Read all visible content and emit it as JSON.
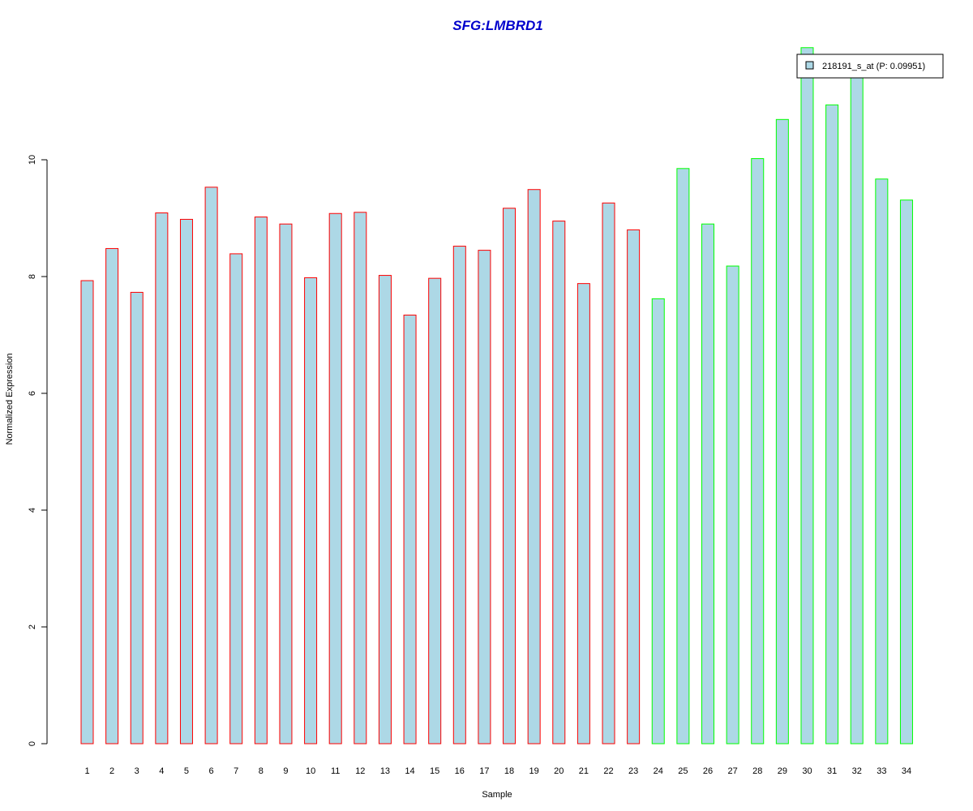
{
  "chart_data": {
    "type": "bar",
    "title": "SFG:LMBRD1",
    "xlabel": "Sample",
    "ylabel": "Normalized Expression",
    "ylim": [
      0,
      12
    ],
    "y_ticks": [
      "0",
      "2",
      "4",
      "6",
      "8",
      "10"
    ],
    "categories": [
      "1",
      "2",
      "3",
      "4",
      "5",
      "6",
      "7",
      "8",
      "9",
      "10",
      "11",
      "12",
      "13",
      "14",
      "15",
      "16",
      "17",
      "18",
      "19",
      "20",
      "21",
      "22",
      "23",
      "24",
      "25",
      "26",
      "27",
      "28",
      "29",
      "30",
      "31",
      "32",
      "33",
      "34"
    ],
    "series": [
      {
        "name": "218191_s_at (P: 0.09951)",
        "values": [
          7.93,
          8.48,
          7.73,
          9.09,
          8.98,
          9.53,
          8.39,
          9.02,
          8.9,
          7.98,
          9.08,
          9.1,
          8.02,
          7.34,
          7.97,
          8.52,
          8.45,
          9.17,
          9.49,
          8.95,
          7.88,
          9.26,
          8.8,
          7.62,
          9.85,
          8.9,
          8.18,
          10.02,
          10.69,
          11.92,
          10.94,
          11.53,
          9.67,
          9.31
        ]
      }
    ],
    "groups": [
      {
        "from": 1,
        "to": 23,
        "border_color": "#ff0000"
      },
      {
        "from": 24,
        "to": 34,
        "border_color": "#00ff00"
      }
    ],
    "colors": {
      "bar_fill": "#add8e6",
      "title": "#0000cc",
      "axis": "#000000"
    },
    "legend": {
      "label": "218191_s_at (P: 0.09951)",
      "placement": "top-right"
    },
    "grid": false
  }
}
